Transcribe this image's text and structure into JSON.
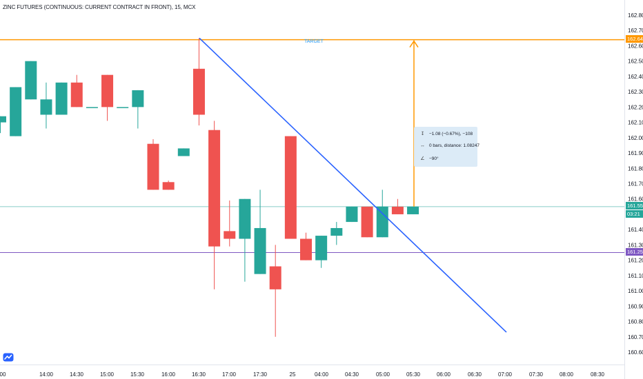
{
  "title": "ZINC FUTURES (CONTINUOUS: CURRENT CONTRACT IN FRONT), 15, MCX",
  "price_axis": {
    "ticks": [
      "162.80",
      "162.70",
      "162.60",
      "162.50",
      "162.40",
      "162.30",
      "162.20",
      "162.10",
      "162.00",
      "161.90",
      "161.80",
      "161.70",
      "161.60",
      "161.50",
      "161.40",
      "161.30",
      "161.20",
      "161.10",
      "161.00",
      "160.90",
      "160.80",
      "160.70",
      "160.60"
    ],
    "target_tag": "162.64",
    "last_price_tag": "161.55",
    "countdown_tag": "03:21",
    "line_tag": "161.25"
  },
  "time_axis": {
    "ticks": [
      "00",
      "14:00",
      "14:30",
      "15:00",
      "15:30",
      "16:00",
      "16:30",
      "17:00",
      "17:30",
      "25",
      "04:00",
      "04:30",
      "05:00",
      "05:30",
      "06:00",
      "06:30",
      "07:00",
      "07:30",
      "08:00",
      "08:30"
    ]
  },
  "drawings": {
    "target_label": "TARGET",
    "measure_price": "−1.08 (−0.67%), −108",
    "measure_bars": "0 bars, distance: 1.08247",
    "measure_angle": "−90°"
  },
  "colors": {
    "up": "#26a69a",
    "down": "#ef5350",
    "trendline": "#2962ff",
    "target": "#ff9800",
    "last_price": "#26a69a",
    "horizontal_line": "#7e57c2",
    "text": "#131722"
  },
  "icons": [
    "range-icon",
    "bars-distance-icon",
    "angle-icon",
    "tradingview-logo-icon"
  ],
  "chart_data": {
    "type": "candlestick",
    "title": "ZINC FUTURES (CONTINUOUS: CURRENT CONTRACT IN FRONT), 15, MCX",
    "interval": "15",
    "exchange": "MCX",
    "ylim": [
      160.55,
      162.87
    ],
    "candles": [
      {
        "o": 162.1,
        "h": 162.14,
        "l": 162.03,
        "c": 162.14
      },
      {
        "o": 162.01,
        "h": 162.33,
        "l": 162.01,
        "c": 162.33
      },
      {
        "o": 162.25,
        "h": 162.5,
        "l": 162.25,
        "c": 162.5
      },
      {
        "o": 162.15,
        "h": 162.36,
        "l": 162.06,
        "c": 162.25
      },
      {
        "o": 162.15,
        "h": 162.36,
        "l": 162.15,
        "c": 162.36
      },
      {
        "o": 162.36,
        "h": 162.41,
        "l": 162.2,
        "c": 162.2
      },
      {
        "o": 162.2,
        "h": 162.2,
        "l": 162.2,
        "c": 162.2
      },
      {
        "o": 162.41,
        "h": 162.41,
        "l": 162.11,
        "c": 162.2
      },
      {
        "o": 162.2,
        "h": 162.2,
        "l": 162.2,
        "c": 162.2
      },
      {
        "o": 162.2,
        "h": 162.31,
        "l": 162.06,
        "c": 162.31
      },
      {
        "o": 161.96,
        "h": 161.99,
        "l": 161.66,
        "c": 161.66
      },
      {
        "o": 161.71,
        "h": 161.72,
        "l": 161.66,
        "c": 161.66
      },
      {
        "o": 161.88,
        "h": 161.93,
        "l": 161.88,
        "c": 161.93
      },
      {
        "o": 162.45,
        "h": 162.65,
        "l": 162.08,
        "c": 162.15
      },
      {
        "o": 162.05,
        "h": 162.11,
        "l": 161.01,
        "c": 161.29
      },
      {
        "o": 161.39,
        "h": 161.59,
        "l": 161.29,
        "c": 161.34
      },
      {
        "o": 161.34,
        "h": 161.6,
        "l": 161.06,
        "c": 161.6
      },
      {
        "o": 161.11,
        "h": 161.66,
        "l": 161.11,
        "c": 161.41
      },
      {
        "o": 161.16,
        "h": 161.3,
        "l": 160.7,
        "c": 161.01
      },
      {
        "o": 162.01,
        "h": 162.01,
        "l": 161.34,
        "c": 161.34
      },
      {
        "o": 161.34,
        "h": 161.38,
        "l": 161.2,
        "c": 161.2
      },
      {
        "o": 161.2,
        "h": 161.36,
        "l": 161.15,
        "c": 161.36
      },
      {
        "o": 161.36,
        "h": 161.45,
        "l": 161.3,
        "c": 161.41
      },
      {
        "o": 161.45,
        "h": 161.55,
        "l": 161.45,
        "c": 161.55
      },
      {
        "o": 161.55,
        "h": 161.55,
        "l": 161.35,
        "c": 161.35
      },
      {
        "o": 161.35,
        "h": 161.66,
        "l": 161.35,
        "c": 161.55
      },
      {
        "o": 161.55,
        "h": 161.6,
        "l": 161.5,
        "c": 161.5
      },
      {
        "o": 161.5,
        "h": 161.55,
        "l": 161.5,
        "c": 161.55
      }
    ],
    "last_price": 161.55,
    "target_price": 162.64,
    "horizontal_line_price": 161.25
  }
}
